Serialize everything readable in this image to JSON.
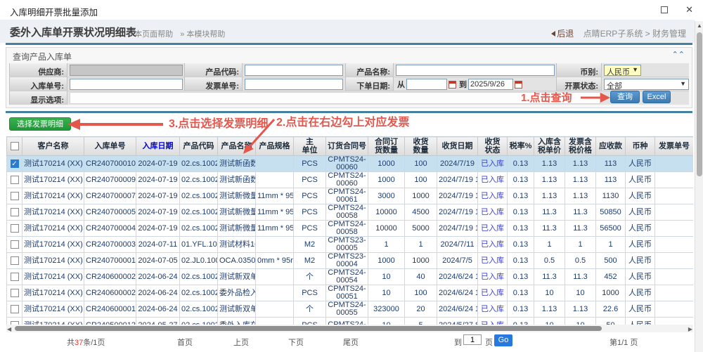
{
  "window": {
    "title": "入库明细开票批量添加"
  },
  "header": {
    "title": "委外入库单开票状况明细表",
    "help_page": "» 本页面帮助",
    "help_module": "» 本模块帮助",
    "back": "后退",
    "breadcrumb": "点睛ERP子系统 > 财务管理"
  },
  "query": {
    "title": "查询产品入库单",
    "supplier_label": "供应商:",
    "product_code_label": "产品代码:",
    "product_name_label": "产品名称:",
    "currency_label": "币别:",
    "currency_value": "人民币",
    "entry_no_label": "入库单号:",
    "invoice_no_label": "发票单号:",
    "order_date_label": "下单日期:",
    "from_label": "从",
    "to_label": "到",
    "date_to_value": "2025/9/26",
    "invoice_status_label": "开票状态:",
    "invoice_status_value": "全部",
    "display_options_label": "显示选项:",
    "search_button": "查询",
    "excel_button": "Excel"
  },
  "annotations": {
    "step1": "1.点击查询",
    "step2": "2.点击在右边勾上对应发票",
    "step3": "3.点击选择发票明细"
  },
  "toolbar": {
    "select_invoice_button": "选择发票明细"
  },
  "table": {
    "columns": [
      "客户名称",
      "入库单号",
      "入库日期",
      "产品代码",
      "产品名称",
      "产品规格",
      "主\n单位",
      "订货合同号",
      "合同订\n货数量",
      "收货\n数量",
      "收货日期",
      "收货\n状态",
      "税率%",
      "入库含\n税单价",
      "发票含\n税价格",
      "应收款",
      "币种",
      "发票单号"
    ],
    "rows": [
      {
        "checked": true,
        "selected": true,
        "cells": [
          "测试170214 (XX)",
          "CR240700010",
          "2024-07-19",
          "02.cs.100241",
          "测试新函数成",
          "",
          "PCS",
          "CPMTS24-00060",
          "1000",
          "100",
          "2024/7/19",
          "已入库",
          "0.13",
          "1.13",
          "1.13",
          "113",
          "人民币",
          ""
        ]
      },
      {
        "checked": false,
        "selected": false,
        "cells": [
          "测试170214 (XX)",
          "CR240700009",
          "2024-07-19",
          "02.cs.100241",
          "测试新函数成",
          "",
          "PCS",
          "CPMTS24-00060",
          "1000",
          "100",
          "2024/7/19 10",
          "已入库",
          "0.13",
          "1.13",
          "1.13",
          "113",
          "人民币",
          ""
        ]
      },
      {
        "checked": false,
        "selected": false,
        "cells": [
          "测试170214 (XX)",
          "CR240700007",
          "2024-07-19",
          "02.cs.100246",
          "测试新微量领",
          "11mm * 95m",
          "PCS",
          "CPMTS24-00061",
          "3000",
          "1000",
          "2024/7/19 10",
          "已入库",
          "0.13",
          "1.13",
          "1.13",
          "1130",
          "人民币",
          ""
        ]
      },
      {
        "checked": false,
        "selected": false,
        "cells": [
          "测试170214 (XX)",
          "CR240700005",
          "2024-07-19",
          "02.cs.100246",
          "测试新微量领",
          "11mm * 95m",
          "PCS",
          "CPMTS24-00058",
          "10000",
          "4500",
          "2024/7/19 10",
          "已入库",
          "0.13",
          "11.3",
          "11.3",
          "50850",
          "人民币",
          ""
        ]
      },
      {
        "checked": false,
        "selected": false,
        "cells": [
          "测试170214 (XX)",
          "CR240700004",
          "2024-07-19",
          "02.cs.100246",
          "测试新微量领",
          "11mm * 95m",
          "PCS",
          "CPMTS24-00058",
          "10000",
          "5000",
          "2024/7/19 10",
          "已入库",
          "0.13",
          "11.3",
          "11.3",
          "56500",
          "人民币",
          ""
        ]
      },
      {
        "checked": false,
        "selected": false,
        "cells": [
          "测试170214 (XX)",
          "CR240700003",
          "2024-07-11",
          "01.YFL.10000",
          "测试材料1608",
          "",
          "M2",
          "CPMTS23-00005",
          "1",
          "1",
          "2024/7/11",
          "已入库",
          "0.13",
          "1",
          "1",
          "1",
          "人民币",
          ""
        ]
      },
      {
        "checked": false,
        "selected": false,
        "cells": [
          "测试170214 (XX)",
          "CR240700001",
          "2024-07-05",
          "02.JL0.10000",
          "OCA.0350-00",
          "0mm * 95m *",
          "M2",
          "CPMTS23-00004",
          "1000",
          "1000",
          "2024/7/5",
          "已入库",
          "0.13",
          "0.5",
          "0.5",
          "500",
          "人民币",
          ""
        ]
      },
      {
        "checked": false,
        "selected": false,
        "cells": [
          "测试170214 (XX)",
          "CR240600002",
          "2024-06-24",
          "02.cs.100244",
          "测试新双单位",
          "",
          "个",
          "CPMTS24-00054",
          "10",
          "40",
          "2024/6/24 16",
          "已入库",
          "0.13",
          "11.3",
          "11.3",
          "452",
          "人民币",
          ""
        ]
      },
      {
        "checked": false,
        "selected": false,
        "cells": [
          "测试170214 (XX)",
          "CR240600002",
          "2024-06-24",
          "02.cs.100245",
          "委外品检入途",
          "",
          "PCS",
          "CPMTS24-00051",
          "10",
          "100",
          "2024/6/24 16",
          "已入库",
          "0.13",
          "10",
          "10",
          "1000",
          "人民币",
          ""
        ]
      },
      {
        "checked": false,
        "selected": false,
        "cells": [
          "测试170214 (XX)",
          "CR240600001",
          "2024-06-24",
          "02.cs.100244",
          "测试新双单位",
          "",
          "个",
          "CPMTS24-00055",
          "323000",
          "20",
          "2024/6/24 16",
          "已入库",
          "0.13",
          "1.13",
          "1.13",
          "22.6",
          "人民币",
          ""
        ]
      },
      {
        "checked": false,
        "selected": false,
        "cells": [
          "测试170214 (XX)",
          "CR240500012",
          "2024-05-27",
          "02.cs.100245",
          "委外入库在途",
          "",
          "PCS",
          "CPMTS24-",
          "10",
          "5",
          "2024/5/27 8:",
          "已入库",
          "0.13",
          "10",
          "10",
          "50",
          "人民币",
          ""
        ]
      }
    ]
  },
  "pagination": {
    "total_prefix": "共",
    "total_count": "37",
    "total_suffix": "条/1页",
    "first": "首页",
    "prev": "上页",
    "next": "下页",
    "last": "尾页",
    "goto_label": "到",
    "page_value": "1",
    "page_unit": "页",
    "go_button": "Go",
    "current": "第1/1 页"
  }
}
